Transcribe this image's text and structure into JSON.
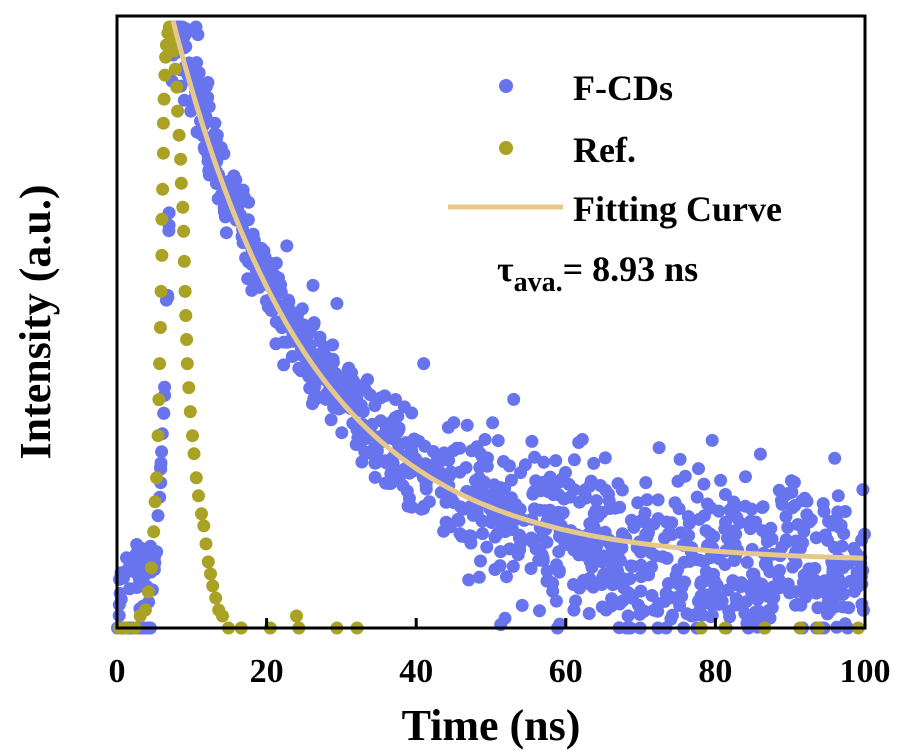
{
  "chart_data": {
    "type": "scatter",
    "title": "",
    "xlabel": "Time (ns)",
    "ylabel": "Intensity (a.u.)",
    "xlim": [
      0,
      100
    ],
    "ylim": [
      0,
      1
    ],
    "x_ticks": [
      0,
      20,
      40,
      60,
      80,
      100
    ],
    "y_ticks_visible": false,
    "grid": false,
    "legend_position": "top-right",
    "colors": {
      "fcds": "#6874ee",
      "ref": "#aaa224",
      "fit": "#e6c98a",
      "axis": "#000000"
    },
    "series": [
      {
        "name": "F-CDs",
        "kind": "scatter",
        "color": "#6874ee",
        "model": {
          "t_start": 7.5,
          "y_baseline": 0.11,
          "amplitude": 0.91,
          "tau_ns": 18.5,
          "pre_peak_level": 0.1,
          "peak_y": 1.0,
          "noise": 0.03
        },
        "outliers": [
          [
            56.5,
            0.13
          ],
          [
            26.2,
            0.57
          ],
          [
            29.4,
            0.54
          ],
          [
            41,
            0.44
          ],
          [
            90.3,
            0.2
          ],
          [
            85.5,
            0.06
          ]
        ]
      },
      {
        "name": "Ref.",
        "kind": "scatter",
        "color": "#aaa224",
        "points": [
          [
            0.3,
            0.0
          ],
          [
            1.2,
            0.0
          ],
          [
            2.4,
            0.0
          ],
          [
            3.1,
            0.02
          ],
          [
            3.8,
            0.03
          ],
          [
            4.2,
            0.06
          ],
          [
            4.6,
            0.1
          ],
          [
            4.9,
            0.16
          ],
          [
            5.1,
            0.21
          ],
          [
            5.3,
            0.25
          ],
          [
            5.5,
            0.32
          ],
          [
            5.6,
            0.38
          ],
          [
            5.7,
            0.44
          ],
          [
            5.8,
            0.5
          ],
          [
            5.9,
            0.56
          ],
          [
            6.0,
            0.62
          ],
          [
            6.0,
            0.68
          ],
          [
            6.1,
            0.73
          ],
          [
            6.2,
            0.79
          ],
          [
            6.2,
            0.84
          ],
          [
            6.3,
            0.88
          ],
          [
            6.4,
            0.92
          ],
          [
            6.5,
            0.95
          ],
          [
            6.6,
            0.97
          ],
          [
            6.8,
            0.99
          ],
          [
            7.0,
            1.0
          ],
          [
            7.2,
            0.99
          ],
          [
            7.4,
            0.98
          ],
          [
            7.6,
            0.96
          ],
          [
            7.8,
            0.93
          ],
          [
            8.0,
            0.9
          ],
          [
            8.1,
            0.86
          ],
          [
            8.3,
            0.82
          ],
          [
            8.5,
            0.78
          ],
          [
            8.6,
            0.74
          ],
          [
            8.8,
            0.7
          ],
          [
            8.9,
            0.66
          ],
          [
            9.0,
            0.61
          ],
          [
            9.1,
            0.56
          ],
          [
            9.2,
            0.52
          ],
          [
            9.3,
            0.48
          ],
          [
            9.4,
            0.44
          ],
          [
            9.6,
            0.4
          ],
          [
            9.8,
            0.36
          ],
          [
            10.1,
            0.32
          ],
          [
            10.3,
            0.29
          ],
          [
            10.6,
            0.25
          ],
          [
            10.9,
            0.22
          ],
          [
            11.3,
            0.19
          ],
          [
            11.6,
            0.17
          ],
          [
            11.9,
            0.14
          ],
          [
            12.2,
            0.11
          ],
          [
            12.5,
            0.09
          ],
          [
            12.8,
            0.07
          ],
          [
            13.2,
            0.05
          ],
          [
            13.6,
            0.03
          ],
          [
            14.1,
            0.02
          ],
          [
            14.9,
            0.0
          ],
          [
            16.6,
            0.0
          ],
          [
            20.5,
            0.0
          ],
          [
            24.0,
            0.02
          ],
          [
            24.3,
            0.0
          ],
          [
            29.4,
            0.0
          ],
          [
            32.1,
            0.0
          ],
          [
            78.1,
            0.0
          ],
          [
            81.3,
            0.0
          ],
          [
            86.6,
            0.0
          ],
          [
            91.3,
            0.0
          ],
          [
            93.8,
            0.0
          ],
          [
            99.1,
            0.0
          ]
        ]
      },
      {
        "name": "Fitting Curve",
        "kind": "line",
        "color": "#e6c98a",
        "model": {
          "t_start": 7.5,
          "y_baseline": 0.11,
          "amplitude": 0.9,
          "tau_ns": 18.5
        }
      }
    ],
    "annotations": [
      {
        "symbol": "τ",
        "subscript": "ava.",
        "value_text": "= 8.93 ns",
        "position": "right-middle"
      }
    ]
  }
}
